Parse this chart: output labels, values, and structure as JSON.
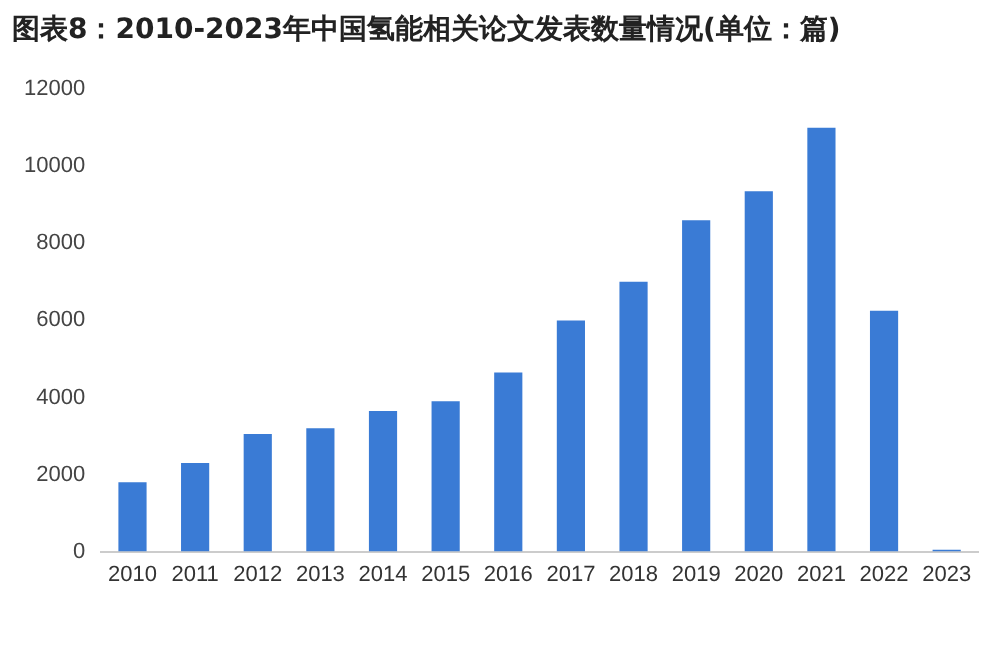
{
  "chart_data": {
    "type": "bar",
    "title": "图表8：2010-2023年中国氢能相关论文发表数量情况(单位：篇)",
    "categories": [
      "2010",
      "2011",
      "2012",
      "2013",
      "2014",
      "2015",
      "2016",
      "2017",
      "2018",
      "2019",
      "2020",
      "2021",
      "2022",
      "2023"
    ],
    "values": [
      1800,
      2300,
      3050,
      3200,
      3650,
      3900,
      4650,
      6000,
      7000,
      8600,
      9350,
      11000,
      6250,
      50
    ],
    "color": "#3a7bd5",
    "ylim": [
      0,
      12000
    ],
    "yticks": [
      0,
      2000,
      4000,
      6000,
      8000,
      10000,
      12000
    ],
    "grid": false,
    "legend": false
  }
}
